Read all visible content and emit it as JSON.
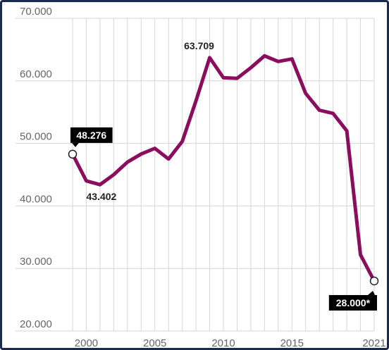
{
  "chart_data": {
    "type": "line",
    "title": "",
    "xlabel": "",
    "ylabel": "",
    "xlim": [
      1999,
      2021
    ],
    "ylim": [
      20000,
      70000
    ],
    "y_ticks": [
      {
        "value": 20000,
        "label": "20.000"
      },
      {
        "value": 30000,
        "label": "30.000"
      },
      {
        "value": 40000,
        "label": "40.000"
      },
      {
        "value": 50000,
        "label": "50.000"
      },
      {
        "value": 60000,
        "label": "60.000"
      },
      {
        "value": 70000,
        "label": "70.000"
      }
    ],
    "x_ticks": [
      {
        "value": 2000,
        "label": "2000"
      },
      {
        "value": 2005,
        "label": "2005"
      },
      {
        "value": 2010,
        "label": "2010"
      },
      {
        "value": 2015,
        "label": "2015"
      },
      {
        "value": 2021,
        "label": "2021"
      }
    ],
    "grid": {
      "vertical": true,
      "horizontal": true
    },
    "series": [
      {
        "color": "#8b0d5e",
        "x": [
          1999,
          2000,
          2001,
          2002,
          2003,
          2004,
          2005,
          2006,
          2007,
          2008,
          2009,
          2010,
          2011,
          2012,
          2013,
          2014,
          2015,
          2016,
          2017,
          2018,
          2019,
          2020,
          2021
        ],
        "values": [
          48276,
          44000,
          43402,
          45000,
          47000,
          48300,
          49200,
          47500,
          50300,
          56800,
          63709,
          60500,
          60400,
          62100,
          64000,
          63100,
          63500,
          58000,
          55300,
          54800,
          52000,
          32200,
          28000
        ]
      }
    ],
    "annotations": [
      {
        "x": 1999,
        "y": 48276,
        "text": "48.276",
        "style": "box",
        "marker": true,
        "position": "above"
      },
      {
        "x": 2001,
        "y": 43402,
        "text": "43.402",
        "style": "plain",
        "position": "below"
      },
      {
        "x": 2009,
        "y": 63709,
        "text": "63.709",
        "style": "plain",
        "position": "above"
      },
      {
        "x": 2021,
        "y": 28000,
        "text": "28.000*",
        "style": "box",
        "marker": true,
        "position": "below-left"
      }
    ]
  },
  "colors": {
    "line": "#8b0d5e",
    "grid": "#d6d6d6",
    "frame": "#1a2a4f",
    "label_box": "#000000"
  }
}
